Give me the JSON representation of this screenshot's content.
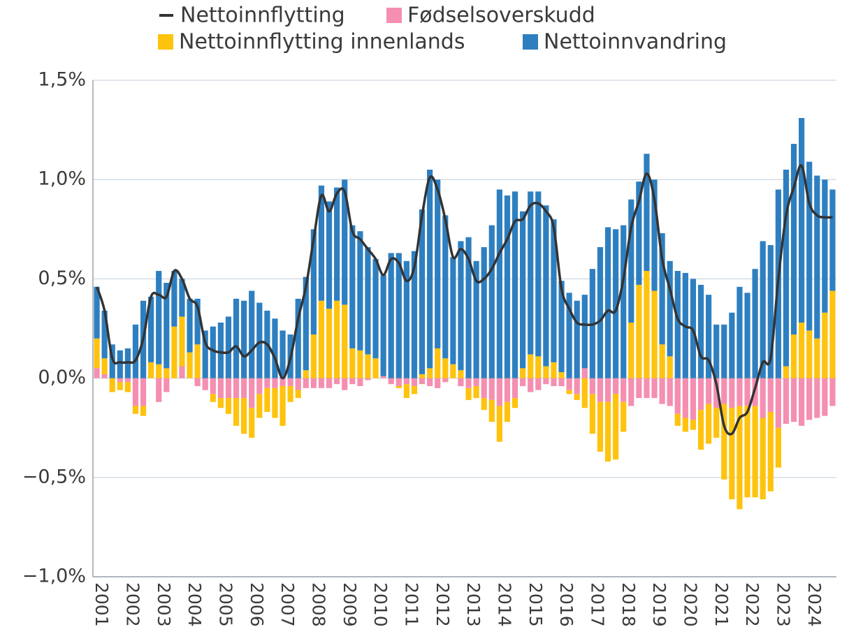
{
  "chart_data": {
    "type": "bar",
    "categories": [
      "2001",
      null,
      null,
      null,
      "2002",
      null,
      null,
      null,
      "2003",
      null,
      null,
      null,
      "2004",
      null,
      null,
      null,
      "2005",
      null,
      null,
      null,
      "2006",
      null,
      null,
      null,
      "2007",
      null,
      null,
      null,
      "2008",
      null,
      null,
      null,
      "2009",
      null,
      null,
      null,
      "2010",
      null,
      null,
      null,
      "2011",
      null,
      null,
      null,
      "2012",
      null,
      null,
      null,
      "2013",
      null,
      null,
      null,
      "2014",
      null,
      null,
      null,
      "2015",
      null,
      null,
      null,
      "2016",
      null,
      null,
      null,
      "2017",
      null,
      null,
      null,
      "2018",
      null,
      null,
      null,
      "2019",
      null,
      null,
      null,
      "2020",
      null,
      null,
      null,
      "2021",
      null,
      null,
      null,
      "2022",
      null,
      null,
      null,
      "2023",
      null,
      null,
      null,
      "2024",
      null,
      null,
      null
    ],
    "series": [
      {
        "name": "Nettoinnflytting",
        "type": "line",
        "color": "#333333",
        "values": [
          0.46,
          0.34,
          0.1,
          0.08,
          0.08,
          0.09,
          0.2,
          0.41,
          0.42,
          0.41,
          0.54,
          0.5,
          0.4,
          0.36,
          0.18,
          0.14,
          0.13,
          0.13,
          0.16,
          0.11,
          0.14,
          0.18,
          0.17,
          0.1,
          0.0,
          0.1,
          0.3,
          0.46,
          0.7,
          0.92,
          0.84,
          0.93,
          0.94,
          0.74,
          0.7,
          0.65,
          0.6,
          0.52,
          0.6,
          0.58,
          0.49,
          0.56,
          0.82,
          1.01,
          0.95,
          0.8,
          0.61,
          0.65,
          0.6,
          0.49,
          0.5,
          0.55,
          0.63,
          0.7,
          0.79,
          0.8,
          0.87,
          0.88,
          0.84,
          0.76,
          0.45,
          0.35,
          0.28,
          0.27,
          0.27,
          0.29,
          0.34,
          0.34,
          0.5,
          0.76,
          0.89,
          1.03,
          0.9,
          0.6,
          0.45,
          0.3,
          0.26,
          0.24,
          0.11,
          0.09,
          -0.03,
          -0.24,
          -0.28,
          -0.2,
          -0.17,
          -0.05,
          0.08,
          0.1,
          0.5,
          0.82,
          0.96,
          1.07,
          0.88,
          0.82,
          0.81,
          0.81
        ]
      },
      {
        "name": "Fødselsoverskudd",
        "color": "#f48fb1",
        "values": [
          0.05,
          0.02,
          0.0,
          -0.02,
          -0.02,
          -0.14,
          -0.14,
          0.0,
          -0.12,
          -0.07,
          0.0,
          0.06,
          0.0,
          -0.04,
          -0.06,
          -0.08,
          -0.1,
          -0.1,
          -0.1,
          -0.1,
          -0.15,
          -0.08,
          -0.05,
          -0.05,
          -0.04,
          -0.04,
          -0.06,
          -0.05,
          -0.05,
          -0.05,
          -0.05,
          -0.03,
          -0.06,
          -0.03,
          -0.04,
          -0.01,
          0.0,
          0.01,
          -0.03,
          -0.04,
          -0.03,
          -0.04,
          -0.03,
          -0.04,
          -0.05,
          -0.02,
          0.0,
          -0.04,
          -0.05,
          -0.04,
          -0.1,
          -0.11,
          -0.14,
          -0.12,
          -0.1,
          -0.04,
          -0.07,
          -0.06,
          -0.03,
          -0.04,
          -0.04,
          -0.06,
          -0.08,
          0.05,
          -0.08,
          -0.12,
          -0.12,
          -0.08,
          -0.12,
          -0.14,
          -0.1,
          -0.1,
          -0.1,
          -0.13,
          -0.14,
          -0.18,
          -0.2,
          -0.21,
          -0.16,
          -0.13,
          -0.15,
          -0.13,
          -0.15,
          -0.14,
          -0.14,
          -0.14,
          -0.2,
          -0.17,
          -0.25,
          -0.23,
          -0.22,
          -0.24,
          -0.21,
          -0.2,
          -0.19,
          -0.14
        ]
      },
      {
        "name": "Nettoinnflytting innenlands",
        "color": "#fec30e",
        "values": [
          0.15,
          0.08,
          -0.07,
          -0.04,
          -0.05,
          -0.04,
          -0.05,
          0.08,
          0.07,
          0.05,
          0.26,
          0.25,
          0.13,
          0.17,
          0.0,
          -0.04,
          -0.05,
          -0.08,
          -0.14,
          -0.18,
          -0.15,
          -0.12,
          -0.12,
          -0.15,
          -0.2,
          -0.08,
          -0.04,
          0.04,
          0.22,
          0.39,
          0.35,
          0.39,
          0.37,
          0.15,
          0.14,
          0.12,
          0.1,
          0.0,
          0.0,
          -0.01,
          -0.07,
          -0.04,
          0.02,
          0.05,
          0.15,
          0.1,
          0.07,
          0.04,
          -0.06,
          -0.06,
          -0.06,
          -0.11,
          -0.18,
          -0.1,
          -0.05,
          0.05,
          0.12,
          0.11,
          0.06,
          0.08,
          0.03,
          -0.02,
          -0.03,
          -0.15,
          -0.2,
          -0.25,
          -0.3,
          -0.33,
          -0.15,
          0.28,
          0.47,
          0.54,
          0.44,
          0.17,
          0.11,
          -0.06,
          -0.07,
          -0.05,
          -0.2,
          -0.2,
          -0.15,
          -0.38,
          -0.46,
          -0.52,
          -0.46,
          -0.46,
          -0.41,
          -0.4,
          -0.2,
          0.06,
          0.22,
          0.28,
          0.24,
          0.2,
          0.33,
          0.44
        ]
      },
      {
        "name": "Nettoinnvandring",
        "color": "#2e7fc0",
        "values": [
          0.26,
          0.24,
          0.17,
          0.14,
          0.15,
          0.27,
          0.39,
          0.33,
          0.47,
          0.43,
          0.28,
          0.19,
          0.27,
          0.23,
          0.24,
          0.26,
          0.28,
          0.31,
          0.4,
          0.39,
          0.44,
          0.38,
          0.34,
          0.3,
          0.24,
          0.22,
          0.4,
          0.47,
          0.53,
          0.58,
          0.54,
          0.57,
          0.63,
          0.62,
          0.6,
          0.54,
          0.5,
          0.51,
          0.63,
          0.63,
          0.59,
          0.64,
          0.83,
          1.0,
          0.85,
          0.72,
          0.54,
          0.65,
          0.71,
          0.59,
          0.66,
          0.77,
          0.95,
          0.92,
          0.94,
          0.79,
          0.82,
          0.83,
          0.81,
          0.72,
          0.46,
          0.43,
          0.39,
          0.37,
          0.55,
          0.66,
          0.76,
          0.75,
          0.77,
          0.62,
          0.52,
          0.59,
          0.56,
          0.56,
          0.48,
          0.54,
          0.53,
          0.5,
          0.47,
          0.42,
          0.27,
          0.27,
          0.33,
          0.46,
          0.43,
          0.55,
          0.69,
          0.67,
          0.95,
          0.99,
          0.96,
          1.03,
          0.85,
          0.82,
          0.67,
          0.51
        ]
      }
    ],
    "ylim": [
      -1.0,
      1.5
    ],
    "yticks": [
      {
        "value": -1.0,
        "label": "−1,0%"
      },
      {
        "value": -0.5,
        "label": "−0,5%"
      },
      {
        "value": 0,
        "label": "0,0%"
      },
      {
        "value": 0.5,
        "label": "0,5%"
      },
      {
        "value": 1.0,
        "label": "1,0%"
      },
      {
        "value": 1.5,
        "label": "1,5%"
      }
    ],
    "grid": true,
    "stacked": true,
    "legend": "top"
  }
}
